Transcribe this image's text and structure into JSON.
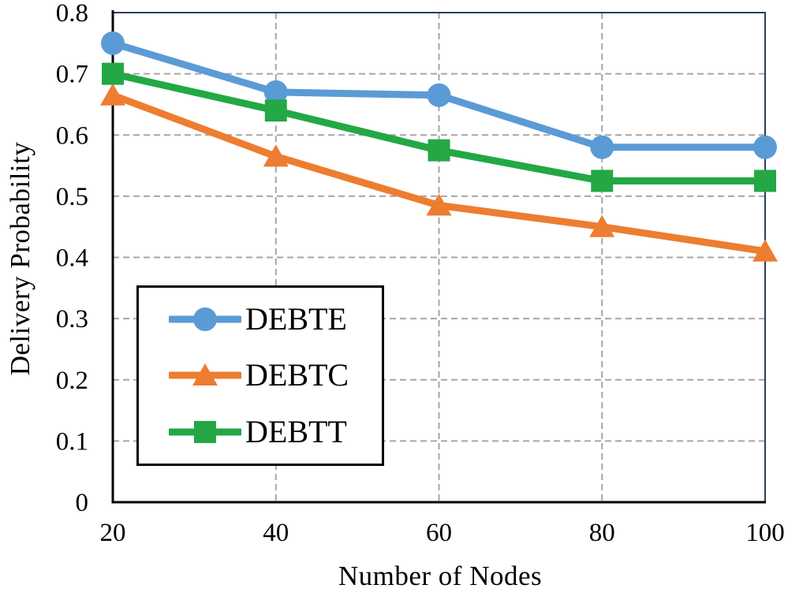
{
  "chart_data": {
    "type": "line",
    "title": "",
    "xlabel": "Number of Nodes",
    "ylabel": "Delivery Probability",
    "x": [
      20,
      40,
      60,
      80,
      100
    ],
    "x_ticks": [
      "20",
      "40",
      "60",
      "80",
      "100"
    ],
    "y_ticks": [
      "0",
      "0.1",
      "0.2",
      "0.3",
      "0.4",
      "0.5",
      "0.6",
      "0.7",
      "0.8"
    ],
    "xlim": [
      20,
      100
    ],
    "ylim": [
      0,
      0.8
    ],
    "grid": "dashed-gray-horizontal-and-vertical",
    "legend_position": "inside-lower-left",
    "series": [
      {
        "name": "DEBTE",
        "marker": "circle",
        "color": "#5B9BD5",
        "values": [
          0.75,
          0.67,
          0.665,
          0.58,
          0.58
        ]
      },
      {
        "name": "DEBTC",
        "marker": "triangle",
        "color": "#ED7D31",
        "values": [
          0.665,
          0.565,
          0.485,
          0.45,
          0.41
        ]
      },
      {
        "name": "DEBTT",
        "marker": "square",
        "color": "#23A845",
        "values": [
          0.7,
          0.64,
          0.575,
          0.525,
          0.525
        ]
      }
    ],
    "colors": {
      "gridline": "#A6A6A6",
      "plot_border": "#2F3E53",
      "axis": "#000000",
      "background": "#FFFFFF",
      "text": "#000000"
    }
  }
}
